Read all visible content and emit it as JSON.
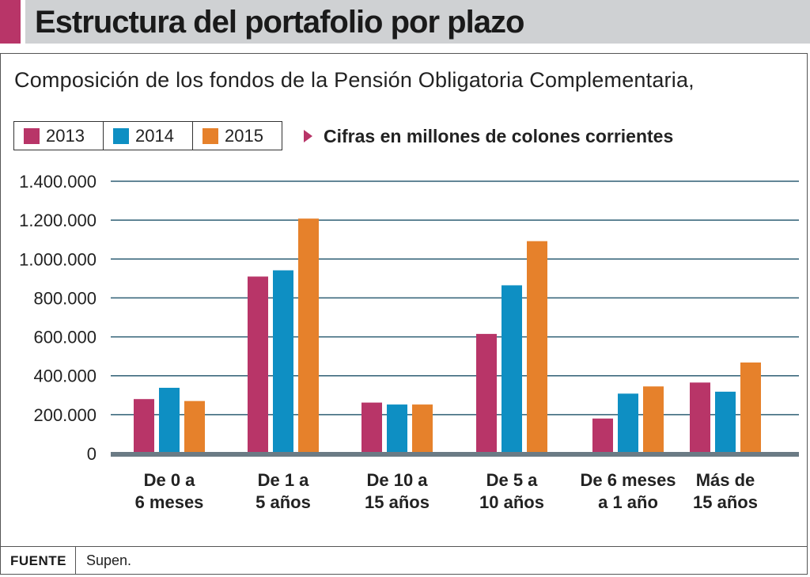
{
  "header": {
    "title": "Estructura del portafolio por plazo"
  },
  "subtitle": "Composición de los fondos de la Pensión Obligatoria Complementaria,",
  "note": "Cifras en millones de colones corrientes",
  "footer": {
    "label": "FUENTE",
    "source": "Supen."
  },
  "colors": {
    "accent": "#b83568",
    "s2013": "#b83568",
    "s2014": "#0e8fc3",
    "s2015": "#e6812b",
    "grid": "#2f5f75",
    "axis": "#6b7b85"
  },
  "chart_data": {
    "type": "bar",
    "title": "Estructura del portafolio por plazo",
    "categories": [
      "De 0 a 6 meses",
      "De 1 a 5 años",
      "De 10 a 15 años",
      "De 5 a 10 años",
      "De 6 meses a 1 año",
      "Más de 15 años"
    ],
    "category_lines": [
      [
        "De 0 a",
        "6 meses"
      ],
      [
        "De 1 a",
        "5 años"
      ],
      [
        "De 10 a",
        "15 años"
      ],
      [
        "De 5 a",
        "10 años"
      ],
      [
        "De 6 meses",
        "a 1 año"
      ],
      [
        "Más de",
        "15 años"
      ]
    ],
    "series": [
      {
        "name": "2013",
        "color": "#b83568",
        "values": [
          280000,
          910000,
          262000,
          615000,
          180000,
          365000
        ]
      },
      {
        "name": "2014",
        "color": "#0e8fc3",
        "values": [
          338000,
          942000,
          252000,
          865000,
          308000,
          318000
        ]
      },
      {
        "name": "2015",
        "color": "#e6812b",
        "values": [
          270000,
          1208000,
          252000,
          1092000,
          345000,
          468000
        ]
      }
    ],
    "ylim": [
      0,
      1400000
    ],
    "yticks": [
      0,
      200000,
      400000,
      600000,
      800000,
      1000000,
      1200000,
      1400000
    ],
    "ytick_labels": [
      "0",
      "200.000",
      "400.000",
      "600.000",
      "800.000",
      "1.000.000",
      "1.200.000",
      "1.400.000"
    ],
    "grid": true,
    "legend": "top-left"
  }
}
